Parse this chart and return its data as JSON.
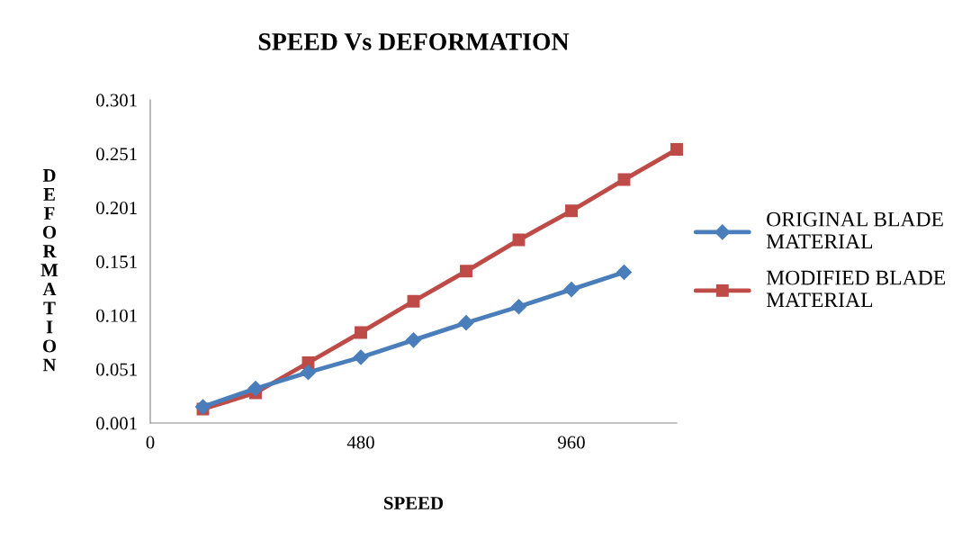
{
  "chart_data": {
    "type": "line",
    "title": "SPEED Vs DEFORMATION",
    "xlabel": "SPEED",
    "ylabel": "DEFORMATION",
    "xlim": [
      0,
      1200
    ],
    "xticks": [
      0,
      480,
      960
    ],
    "ylim": [
      0.001,
      0.301
    ],
    "yticks": [
      0.001,
      0.051,
      0.101,
      0.151,
      0.201,
      0.251,
      0.301
    ],
    "grid": false,
    "legend": "right",
    "line_style": "solid",
    "series": [
      {
        "name": "ORIGINAL BLADE\nMATERIAL",
        "color": "#4a7ebb",
        "marker": "diamond",
        "x": [
          120,
          240,
          360,
          480,
          600,
          720,
          840,
          960,
          1080
        ],
        "values": [
          0.016,
          0.033,
          0.048,
          0.062,
          0.078,
          0.094,
          0.109,
          0.125,
          0.141
        ]
      },
      {
        "name": "MODIFIED BLADE\nMATERIAL",
        "color": "#be4b48",
        "marker": "square",
        "x": [
          120,
          240,
          360,
          480,
          600,
          720,
          840,
          960,
          1080,
          1200
        ],
        "values": [
          0.014,
          0.029,
          0.057,
          0.085,
          0.114,
          0.142,
          0.171,
          0.198,
          0.227,
          0.255
        ]
      }
    ]
  }
}
